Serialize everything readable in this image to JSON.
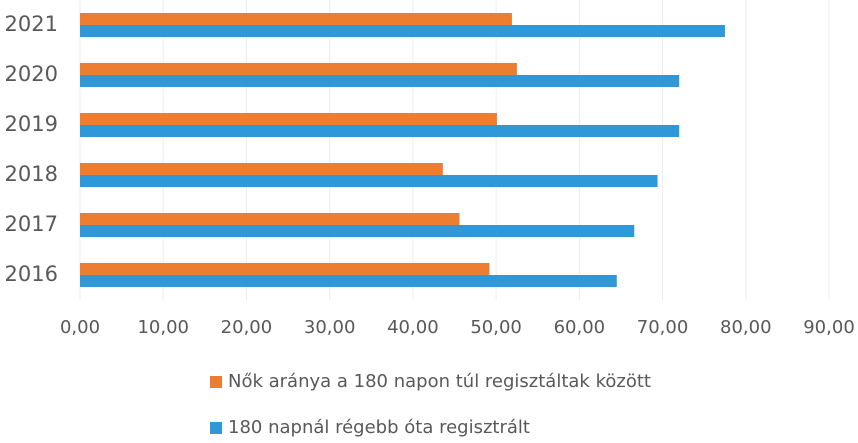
{
  "chart_data": {
    "type": "hbar",
    "categories": [
      "2021",
      "2020",
      "2019",
      "2018",
      "2017",
      "2016"
    ],
    "series": [
      {
        "name": "Nők aránya a 180 napon túl regisztáltak között",
        "color": "#ed7d31",
        "values": [
          51.9,
          52.5,
          50.1,
          43.6,
          45.6,
          49.2
        ]
      },
      {
        "name": "180 napnál régebb óta regisztrált",
        "color": "#2f98d9",
        "values": [
          77.5,
          72.0,
          72.0,
          69.4,
          66.6,
          64.5
        ]
      }
    ],
    "xlim": [
      0,
      90
    ],
    "xticks": [
      {
        "value": 0,
        "label": "0,00"
      },
      {
        "value": 10,
        "label": "10,00"
      },
      {
        "value": 20,
        "label": "20,00"
      },
      {
        "value": 30,
        "label": "30,00"
      },
      {
        "value": 40,
        "label": "40,00"
      },
      {
        "value": 50,
        "label": "50,00"
      },
      {
        "value": 60,
        "label": "60,00"
      },
      {
        "value": 70,
        "label": "70,00"
      },
      {
        "value": 80,
        "label": "80,00"
      },
      {
        "value": 90,
        "label": "90,00"
      }
    ],
    "grid": true
  }
}
